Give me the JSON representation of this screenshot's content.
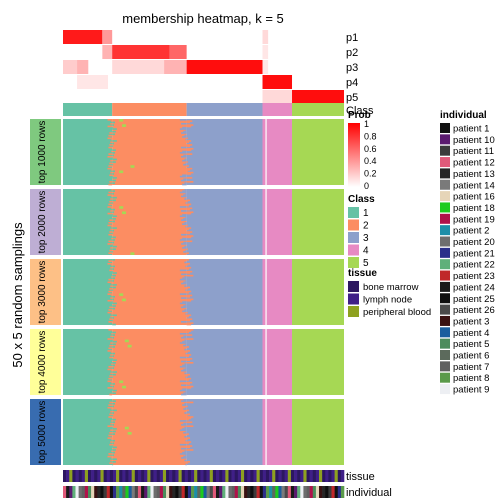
{
  "chart_data": {
    "type": "heatmap",
    "title": "membership heatmap, k = 5",
    "ylabel": "50 x 5 random samplings",
    "membership_rows": [
      "p1",
      "p2",
      "p3",
      "p4",
      "p5"
    ],
    "class_row_label": "Class",
    "top_value_rows": [
      "top 1000 rows",
      "top 2000 rows",
      "top 3000 rows",
      "top 4000 rows",
      "top 5000 rows"
    ],
    "bottom_rows": [
      "tissue",
      "individual"
    ],
    "class_colors": {
      "1": "#66C2A5",
      "2": "#FC8D62",
      "3": "#8DA0CB",
      "4": "#E78AC3",
      "5": "#A6D854"
    },
    "top_value_colors": [
      "#7FC97F",
      "#BEAED4",
      "#FDC086",
      "#FFFF99",
      "#386CB0"
    ],
    "class_segments": [
      {
        "class": "1",
        "from": 0,
        "to": 0.175
      },
      {
        "class": "2",
        "from": 0.175,
        "to": 0.44
      },
      {
        "class": "3",
        "from": 0.44,
        "to": 0.71
      },
      {
        "class": "4",
        "from": 0.71,
        "to": 0.815
      },
      {
        "class": "5",
        "from": 0.815,
        "to": 1
      }
    ],
    "membership_segments": [
      {
        "row": "p1",
        "spans": [
          {
            "from": 0,
            "to": 0.14,
            "p": 0.9
          },
          {
            "from": 0.14,
            "to": 0.175,
            "p": 0.4
          },
          {
            "from": 0.71,
            "to": 0.73,
            "p": 0.15
          }
        ]
      },
      {
        "row": "p2",
        "spans": [
          {
            "from": 0.14,
            "to": 0.175,
            "p": 0.3
          },
          {
            "from": 0.175,
            "to": 0.38,
            "p": 0.8
          },
          {
            "from": 0.38,
            "to": 0.44,
            "p": 0.6
          },
          {
            "from": 0.71,
            "to": 0.73,
            "p": 0.1
          }
        ]
      },
      {
        "row": "p3",
        "spans": [
          {
            "from": 0,
            "to": 0.05,
            "p": 0.2
          },
          {
            "from": 0.05,
            "to": 0.09,
            "p": 0.3
          },
          {
            "from": 0.175,
            "to": 0.44,
            "p": 0.15
          },
          {
            "from": 0.36,
            "to": 0.44,
            "p": 0.3
          },
          {
            "from": 0.44,
            "to": 0.71,
            "p": 0.95
          },
          {
            "from": 0.71,
            "to": 0.73,
            "p": 0.1
          }
        ]
      },
      {
        "row": "p4",
        "spans": [
          {
            "from": 0.05,
            "to": 0.16,
            "p": 0.1
          },
          {
            "from": 0.71,
            "to": 0.815,
            "p": 0.95
          }
        ]
      },
      {
        "row": "p5",
        "spans": [
          {
            "from": 0.71,
            "to": 0.815,
            "p": 0.15
          },
          {
            "from": 0.815,
            "to": 1,
            "p": 0.95
          }
        ]
      }
    ],
    "membership_legend": {
      "title": "Prob",
      "ticks": [
        "1",
        "0.8",
        "0.6",
        "0.4",
        "0.2",
        "0"
      ]
    },
    "class_legend": {
      "title": "Class",
      "items": [
        "1",
        "2",
        "3",
        "4",
        "5"
      ]
    },
    "tissue_legend": {
      "title": "tissue",
      "items": [
        {
          "label": "bone marrow",
          "color": "#2C1760"
        },
        {
          "label": "lymph node",
          "color": "#3F1F87"
        },
        {
          "label": "peripheral blood",
          "color": "#8EA120"
        }
      ]
    },
    "individual_legend": {
      "title": "individual",
      "items": [
        {
          "label": "patient 1",
          "color": "#111111"
        },
        {
          "label": "patient 10",
          "color": "#5B1A6F"
        },
        {
          "label": "patient 11",
          "color": "#3B3B3B"
        },
        {
          "label": "patient 12",
          "color": "#E05A7A"
        },
        {
          "label": "patient 13",
          "color": "#262626"
        },
        {
          "label": "patient 14",
          "color": "#7A7A7A"
        },
        {
          "label": "patient 16",
          "color": "#E6D5B8"
        },
        {
          "label": "patient 18",
          "color": "#1DCB1D"
        },
        {
          "label": "patient 19",
          "color": "#B0124A"
        },
        {
          "label": "patient 2",
          "color": "#1D8EA8"
        },
        {
          "label": "patient 20",
          "color": "#6E6E6E"
        },
        {
          "label": "patient 21",
          "color": "#2B2F8A"
        },
        {
          "label": "patient 22",
          "color": "#5FB07A"
        },
        {
          "label": "patient 23",
          "color": "#C0282A"
        },
        {
          "label": "patient 24",
          "color": "#1A1A1A"
        },
        {
          "label": "patient 25",
          "color": "#0F0F0F"
        },
        {
          "label": "patient 26",
          "color": "#4A4A4A"
        },
        {
          "label": "patient 3",
          "color": "#3A1212"
        },
        {
          "label": "patient 4",
          "color": "#1B5E9E"
        },
        {
          "label": "patient 5",
          "color": "#4C8C5C"
        },
        {
          "label": "patient 6",
          "color": "#5C6A5C"
        },
        {
          "label": "patient 7",
          "color": "#606060"
        },
        {
          "label": "patient 8",
          "color": "#5A9A4A"
        },
        {
          "label": "patient 9",
          "color": "#EDEFF3"
        }
      ]
    }
  }
}
